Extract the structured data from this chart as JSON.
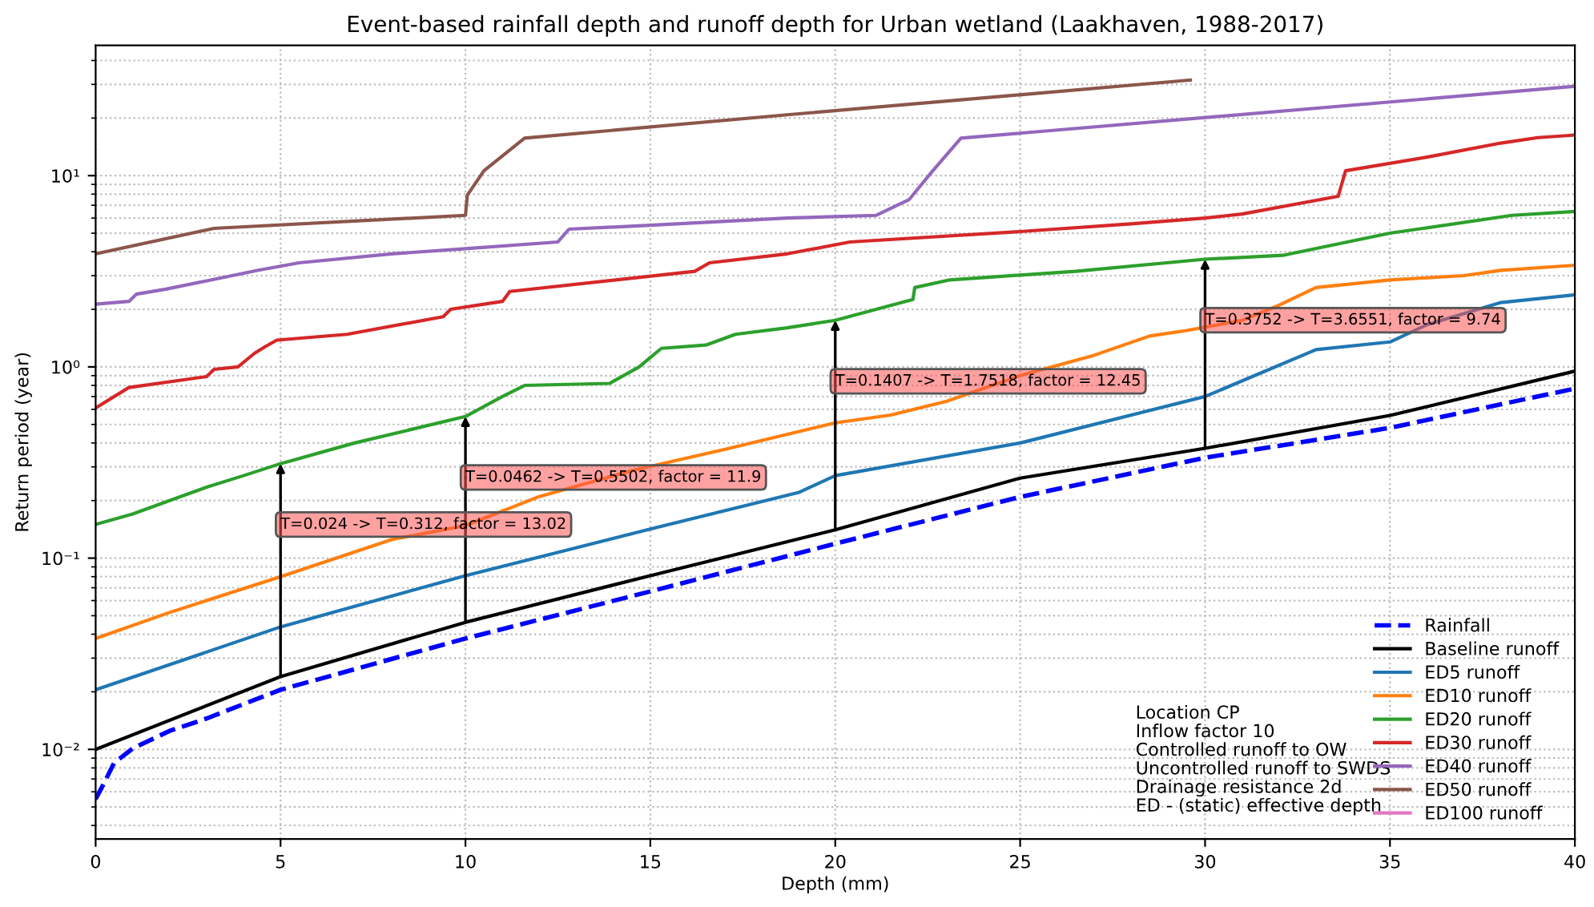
{
  "chart_data": {
    "type": "line",
    "title": "Event-based rainfall depth and runoff depth for Urban wetland (Laakhaven, 1988-2017)",
    "xlabel": "Depth (mm)",
    "ylabel": "Return period (year)",
    "log": true,
    "xlim": [
      0,
      40
    ],
    "xticks": [
      0,
      5,
      10,
      15,
      20,
      25,
      30,
      35,
      40
    ],
    "ylim": [
      0.0034,
      48
    ],
    "yticks": [
      {
        "value": 0.01,
        "label": "10⁻²"
      },
      {
        "value": 0.1,
        "label": "10⁻¹"
      },
      {
        "value": 1,
        "label": "10⁰"
      },
      {
        "value": 10,
        "label": "10¹"
      }
    ],
    "grid": true,
    "legend": "bottom right",
    "marker": "none",
    "series": [
      {
        "name": "Rainfall",
        "color": "#0000ff",
        "line_style": "dashed",
        "x": [
          0,
          0.2,
          0.5,
          1,
          2,
          3,
          5,
          10,
          15,
          20,
          25,
          30,
          35,
          40
        ],
        "values": [
          0.0055,
          0.0065,
          0.0085,
          0.0101,
          0.0125,
          0.0145,
          0.0205,
          0.038,
          0.067,
          0.119,
          0.209,
          0.335,
          0.48,
          0.77
        ]
      },
      {
        "name": "Baseline runoff",
        "color": "#000000",
        "x": [
          0,
          5,
          10,
          15,
          20,
          25,
          30,
          35,
          40
        ],
        "values": [
          0.01,
          0.024,
          0.0462,
          0.081,
          0.1407,
          0.262,
          0.3752,
          0.557,
          0.95
        ]
      },
      {
        "name": "ED5 runoff",
        "color": "#1f77b4",
        "x": [
          0,
          5,
          10,
          15,
          19,
          20,
          25,
          30,
          33,
          35,
          36,
          38,
          40
        ],
        "values": [
          0.0205,
          0.0437,
          0.081,
          0.142,
          0.22,
          0.27,
          0.4,
          0.7,
          1.23,
          1.35,
          1.66,
          2.17,
          2.38
        ]
      },
      {
        "name": "ED10 runoff",
        "color": "#ff7f0e",
        "x": [
          0,
          2,
          5,
          8,
          10,
          12,
          14.6,
          17,
          20,
          21.5,
          23,
          25,
          27,
          28.5,
          29.5,
          31,
          32,
          33,
          35,
          37,
          38,
          40
        ],
        "values": [
          0.038,
          0.052,
          0.08,
          0.125,
          0.148,
          0.21,
          0.29,
          0.37,
          0.51,
          0.56,
          0.66,
          0.9,
          1.15,
          1.45,
          1.55,
          1.75,
          2.1,
          2.6,
          2.85,
          3.0,
          3.2,
          3.4
        ]
      },
      {
        "name": "ED20 runoff",
        "color": "#2ca02c",
        "x": [
          0,
          1,
          2,
          3,
          4,
          5,
          7,
          10,
          11,
          11.6,
          13.9,
          14.7,
          15,
          15.3,
          16.5,
          17.3,
          18.7,
          20,
          22.1,
          22.15,
          23.1,
          26.5,
          30,
          32.1,
          35,
          38.3,
          40
        ],
        "values": [
          0.15,
          0.17,
          0.2,
          0.235,
          0.27,
          0.312,
          0.4,
          0.5502,
          0.7,
          0.8,
          0.82,
          1.0,
          1.12,
          1.25,
          1.3,
          1.48,
          1.6,
          1.7518,
          2.25,
          2.6,
          2.85,
          3.16,
          3.6551,
          3.83,
          5.0,
          6.2,
          6.5
        ]
      },
      {
        "name": "ED30 runoff",
        "color": "#d62728",
        "x": [
          0,
          0.9,
          3.0,
          3.2,
          3.85,
          4.3,
          4.6,
          4.9,
          6.8,
          9.4,
          9.6,
          11,
          11.2,
          16.2,
          16.6,
          18.7,
          20.4,
          25,
          28,
          30,
          31,
          33.6,
          33.8,
          36,
          38,
          39,
          40
        ],
        "values": [
          0.61,
          0.78,
          0.89,
          0.97,
          1.0,
          1.18,
          1.28,
          1.38,
          1.48,
          1.83,
          2.0,
          2.2,
          2.48,
          3.16,
          3.5,
          3.9,
          4.5,
          5.1,
          5.6,
          6.0,
          6.3,
          7.8,
          10.6,
          12.5,
          14.8,
          15.8,
          16.3
        ]
      },
      {
        "name": "ED40 runoff",
        "color": "#9467bd",
        "x": [
          0,
          0.9,
          1.1,
          1.9,
          3.4,
          4.4,
          5.5,
          8,
          10,
          12.5,
          12.8,
          15,
          18.7,
          21.1,
          22,
          22.6,
          23.4,
          40
        ],
        "values": [
          2.13,
          2.2,
          2.4,
          2.55,
          2.92,
          3.2,
          3.5,
          3.9,
          4.15,
          4.5,
          5.25,
          5.5,
          6.0,
          6.2,
          7.5,
          10.4,
          15.7,
          29.3
        ]
      },
      {
        "name": "ED50 runoff",
        "color": "#8c564b",
        "x": [
          0,
          3.2,
          10,
          10.05,
          10.5,
          11.6,
          18.7,
          29.6
        ],
        "values": [
          3.9,
          5.3,
          6.2,
          7.9,
          10.6,
          15.7,
          20.8,
          31.6
        ]
      },
      {
        "name": "ED100 runoff",
        "color": "#e377c2"
      }
    ],
    "annotations": [
      {
        "text": "T=0.024 -> T=0.312, factor = 13.02",
        "x": 5,
        "y": 0.312
      },
      {
        "text": "T=0.0462 -> T=0.5502, factor = 11.9",
        "x": 10,
        "y": 0.5502
      },
      {
        "text": "T=0.1407 -> T=1.7518, factor = 12.45",
        "x": 20,
        "y": 1.7518
      },
      {
        "text": "T=0.3752 -> T=3.6551, factor = 9.74",
        "x": 30,
        "y": 3.6551
      },
      "Location CP\nInflow factor 10\nControlled runoff to OW\nUncontrolled runoff to SWDS\nDrainage resistance 2d\nED - (static) effective depth"
    ]
  }
}
